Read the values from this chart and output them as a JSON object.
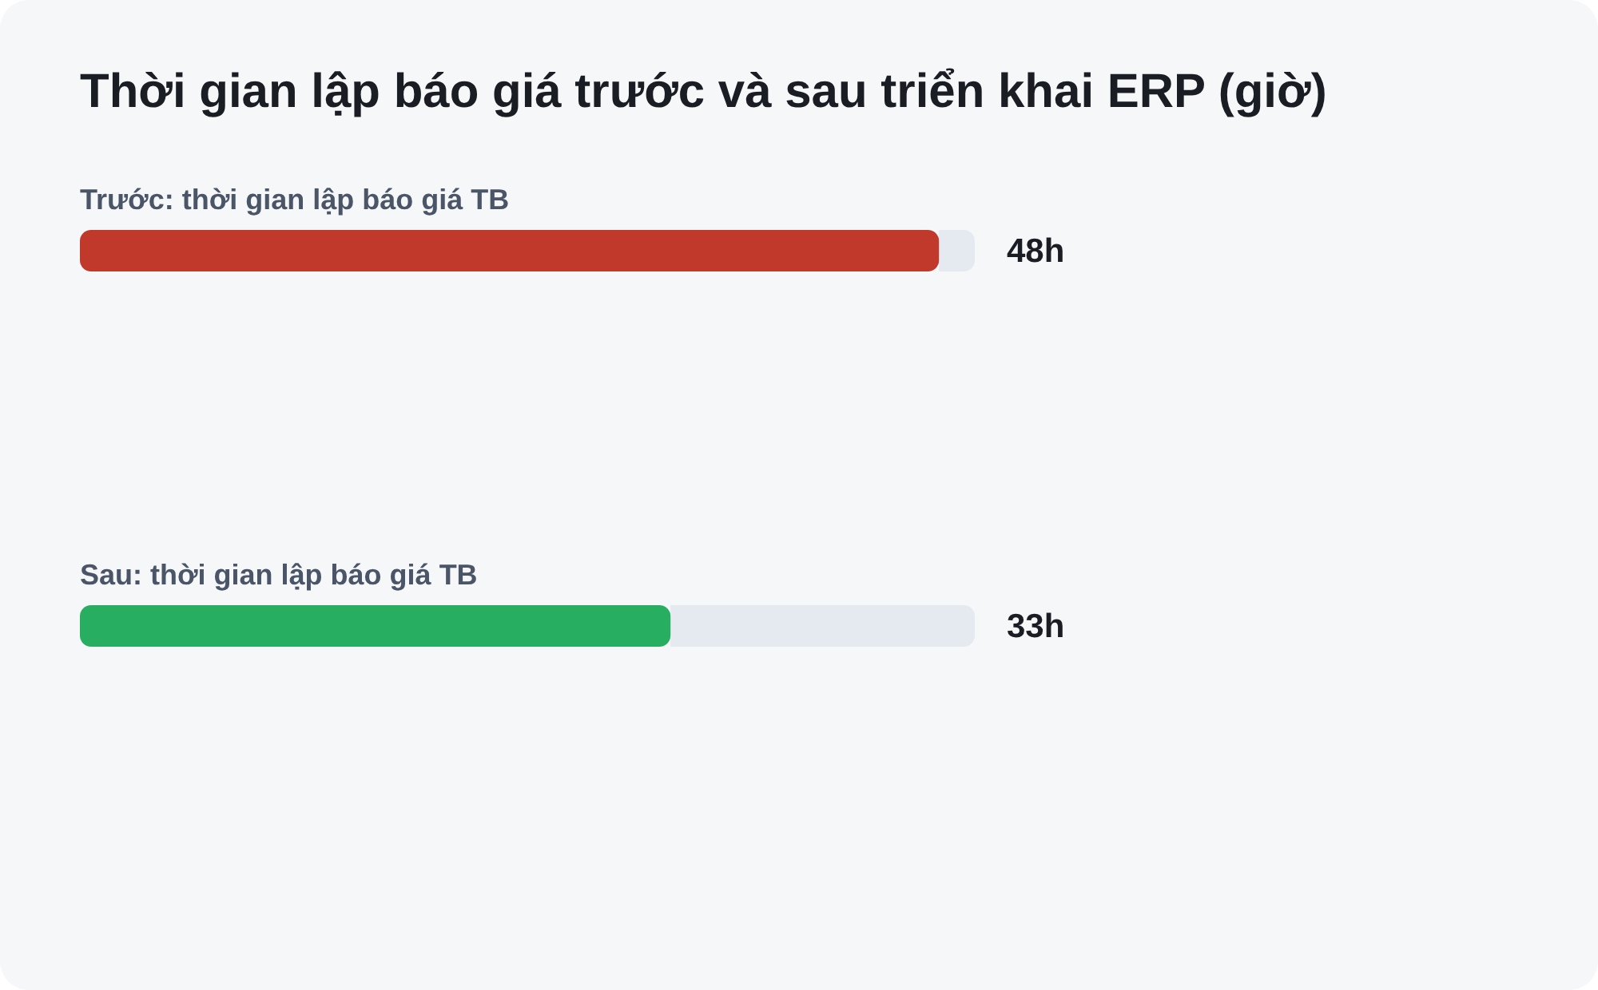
{
  "chart_data": {
    "type": "bar",
    "orientation": "horizontal",
    "title": "Thời gian lập báo giá trước và sau triển khai ERP (giờ)",
    "categories": [
      "Trước: thời gian lập báo giá TB",
      "Sau: thời gian lập báo giá TB"
    ],
    "values": [
      48,
      33
    ],
    "colors": [
      "#c0392b",
      "#27ae60"
    ],
    "value_labels": [
      "48h",
      "33h"
    ],
    "xlim": [
      0,
      50
    ]
  }
}
